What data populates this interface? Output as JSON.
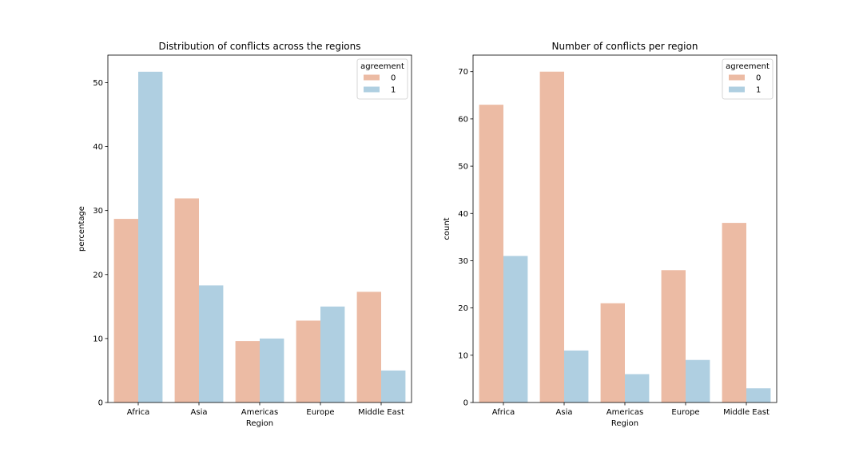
{
  "chart_data": [
    {
      "type": "bar",
      "title": "Distribution of conflicts across the regions",
      "xlabel": "Region",
      "ylabel": "percentage",
      "categories": [
        "Africa",
        "Asia",
        "Americas",
        "Europe",
        "Middle East"
      ],
      "ylim": [
        0,
        54.3
      ],
      "yticks": [
        0,
        10,
        20,
        30,
        40,
        50
      ],
      "grid": false,
      "legend": {
        "title": "agreement",
        "placement": "top-right"
      },
      "series": [
        {
          "name": "0",
          "color": "#ecbba4",
          "values": [
            28.7,
            31.9,
            9.6,
            12.8,
            17.3
          ]
        },
        {
          "name": "1",
          "color": "#afcfe1",
          "values": [
            51.7,
            18.3,
            10.0,
            15.0,
            5.0
          ]
        }
      ]
    },
    {
      "type": "bar",
      "title": "Number of conflicts per region",
      "xlabel": "Region",
      "ylabel": "count",
      "categories": [
        "Africa",
        "Asia",
        "Americas",
        "Europe",
        "Middle East"
      ],
      "ylim": [
        0,
        73.5
      ],
      "yticks": [
        0,
        10,
        20,
        30,
        40,
        50,
        60,
        70
      ],
      "grid": false,
      "legend": {
        "title": "agreement",
        "placement": "top-right"
      },
      "series": [
        {
          "name": "0",
          "color": "#ecbba4",
          "values": [
            63,
            70,
            21,
            28,
            38
          ]
        },
        {
          "name": "1",
          "color": "#afcfe1",
          "values": [
            31,
            11,
            6,
            9,
            3
          ]
        }
      ]
    }
  ]
}
